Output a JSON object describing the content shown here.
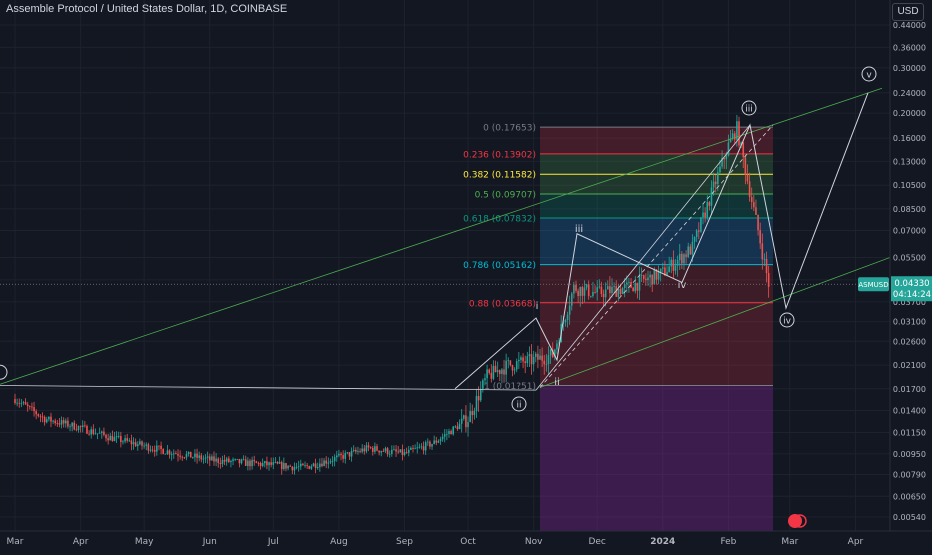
{
  "header": {
    "title": "Assemble Protocol / United States Dollar, 1D, COINBASE",
    "currency_button": "USD"
  },
  "chart_data": {
    "type": "candlestick",
    "symbol": "ASMUSD",
    "last_price": "0.04330",
    "countdown": "04:14:24",
    "scale": "log",
    "y_ticks": [
      "0.44000",
      "0.36000",
      "0.30000",
      "0.24000",
      "0.20000",
      "0.16000",
      "0.13000",
      "0.10500",
      "0.08500",
      "0.07000",
      "0.05500",
      "0.04500",
      "0.03700",
      "0.03100",
      "0.02600",
      "0.02100",
      "0.01700",
      "0.01400",
      "0.01150",
      "0.00950",
      "0.00790",
      "0.00650",
      "0.00540"
    ],
    "x_ticks": [
      "Mar",
      "Apr",
      "May",
      "Jun",
      "Jul",
      "Aug",
      "Sep",
      "Oct",
      "Nov",
      "Dec",
      "2024",
      "Feb",
      "Mar",
      "Apr"
    ],
    "fib_levels": [
      {
        "label": "0 (0.17653)",
        "value": 0.17653,
        "color": "#787b86"
      },
      {
        "label": "0.236 (0.13902)",
        "value": 0.13902,
        "color": "#f23645"
      },
      {
        "label": "0.382 (0.11582)",
        "value": 0.11582,
        "color": "#ffeb3b"
      },
      {
        "label": "0.5 (0.09707)",
        "value": 0.09707,
        "color": "#4caf50"
      },
      {
        "label": "0.618 (0.07832)",
        "value": 0.07832,
        "color": "#089981"
      },
      {
        "label": "0.786 (0.05162)",
        "value": 0.05162,
        "color": "#00bcd4"
      },
      {
        "label": "0.88 (0.03668)",
        "value": 0.03668,
        "color": "#f23645"
      },
      {
        "label": "1 (0.01?51)",
        "value": 0.0175,
        "color": "#787b86"
      }
    ],
    "wave_labels": [
      "iii",
      "v",
      "iv",
      "ii",
      "i",
      "iii",
      "iv",
      "ii"
    ],
    "price_path": [
      [
        "Mar 1",
        0.0155
      ],
      [
        "Mar 15",
        0.013
      ],
      [
        "Apr 1",
        0.012
      ],
      [
        "Apr 15",
        0.011
      ],
      [
        "May 1",
        0.0102
      ],
      [
        "May 15",
        0.0096
      ],
      [
        "Jun 1",
        0.009
      ],
      [
        "Jun 15",
        0.0088
      ],
      [
        "Jul 1",
        0.0086
      ],
      [
        "Jul 15",
        0.0084
      ],
      [
        "Aug 1",
        0.0092
      ],
      [
        "Aug 15",
        0.01
      ],
      [
        "Sep 1",
        0.0095
      ],
      [
        "Sep 15",
        0.0105
      ],
      [
        "Oct 1",
        0.013
      ],
      [
        "Oct 10",
        0.019
      ],
      [
        "Oct 20",
        0.021
      ],
      [
        "Nov 1",
        0.022
      ],
      [
        "Nov 10",
        0.023
      ],
      [
        "Nov 20",
        0.042
      ],
      [
        "Dec 1",
        0.04
      ],
      [
        "Dec 15",
        0.042
      ],
      [
        "Jan 1",
        0.048
      ],
      [
        "Jan 15",
        0.06
      ],
      [
        "Feb 1",
        0.15
      ],
      [
        "Feb 5",
        0.175
      ],
      [
        "Feb 10",
        0.11
      ],
      [
        "Feb 15",
        0.07
      ],
      [
        "Feb 20",
        0.0433
      ]
    ]
  }
}
